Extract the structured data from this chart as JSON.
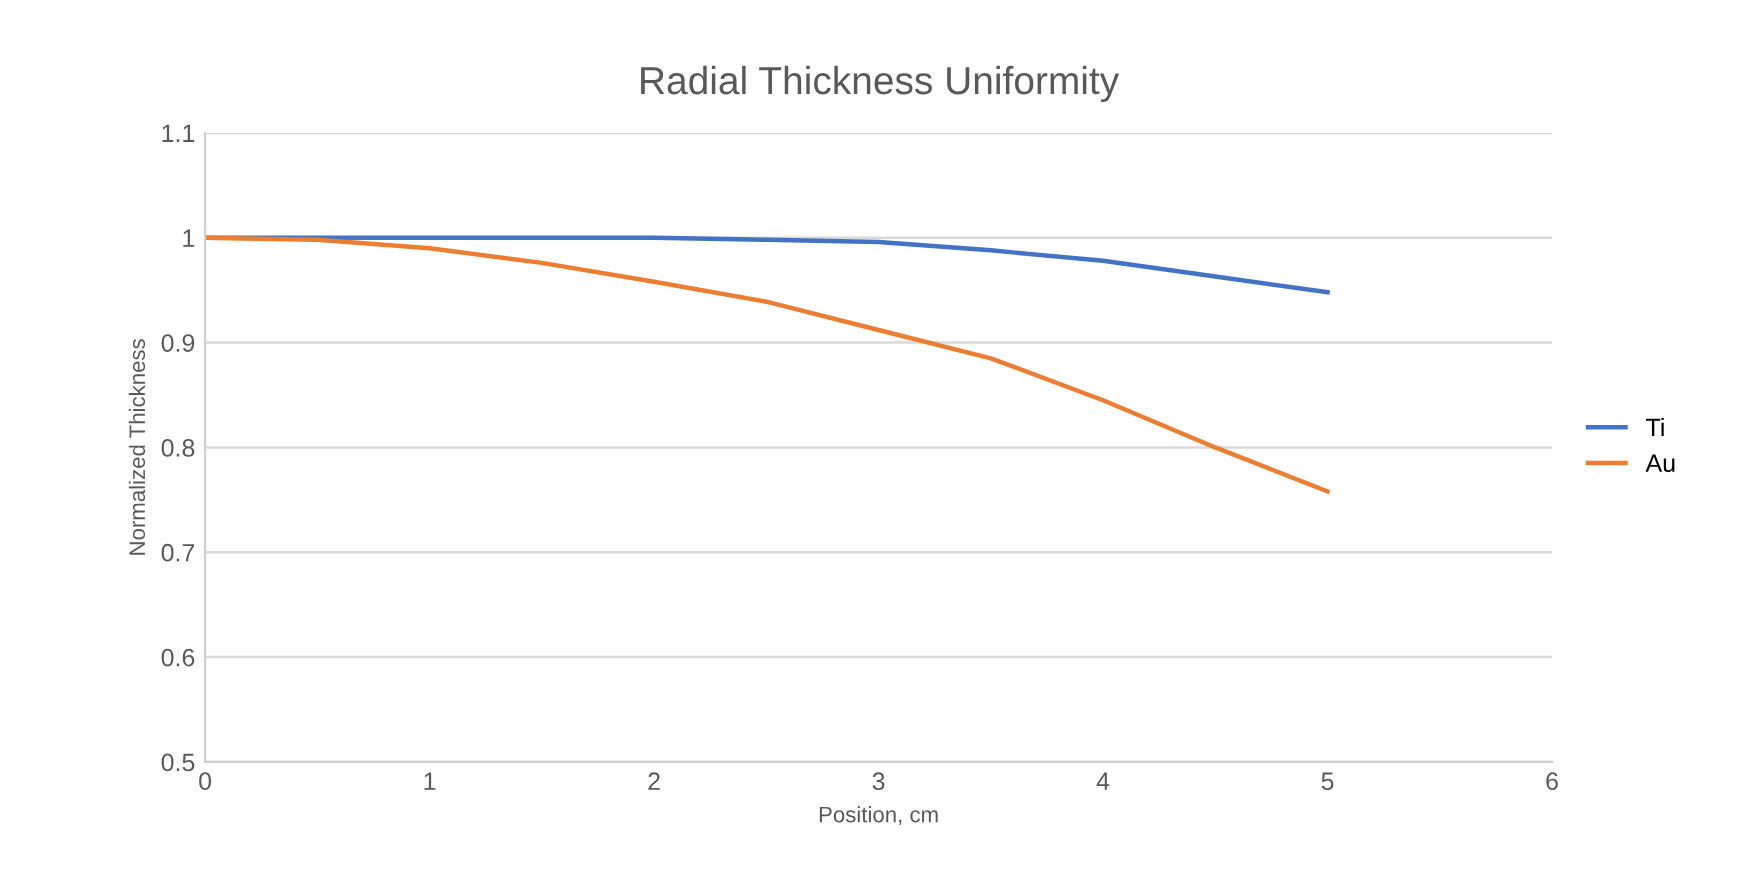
{
  "chart_data": {
    "type": "line",
    "title": "Radial Thickness Uniformity",
    "xlabel": "Position, cm",
    "ylabel": "Normalized Thickness",
    "xlim": [
      0,
      6
    ],
    "xticks": [
      0,
      1,
      2,
      3,
      4,
      5,
      6
    ],
    "ylim": [
      0.5,
      1.1
    ],
    "yticks": [
      0.5,
      0.6,
      0.7,
      0.8,
      0.9,
      1,
      1.1
    ],
    "grid": "y",
    "legend": "right",
    "marker": "none",
    "line_style": "solid",
    "series": [
      {
        "name": "Ti",
        "color": "#4472c4",
        "x": [
          0,
          0.5,
          1,
          1.5,
          2,
          2.5,
          3,
          3.5,
          4,
          4.5,
          5
        ],
        "values": [
          1,
          1,
          1,
          1,
          1,
          0.998,
          0.996,
          0.988,
          0.978,
          0.963,
          0.948
        ]
      },
      {
        "name": "Au",
        "color": "#ed7d31",
        "x": [
          0,
          0.5,
          1,
          1.5,
          2,
          2.5,
          3,
          3.5,
          4,
          4.5,
          5
        ],
        "values": [
          1,
          0.998,
          0.99,
          0.976,
          0.958,
          0.939,
          0.912,
          0.885,
          0.845,
          0.8,
          0.758
        ]
      }
    ]
  }
}
